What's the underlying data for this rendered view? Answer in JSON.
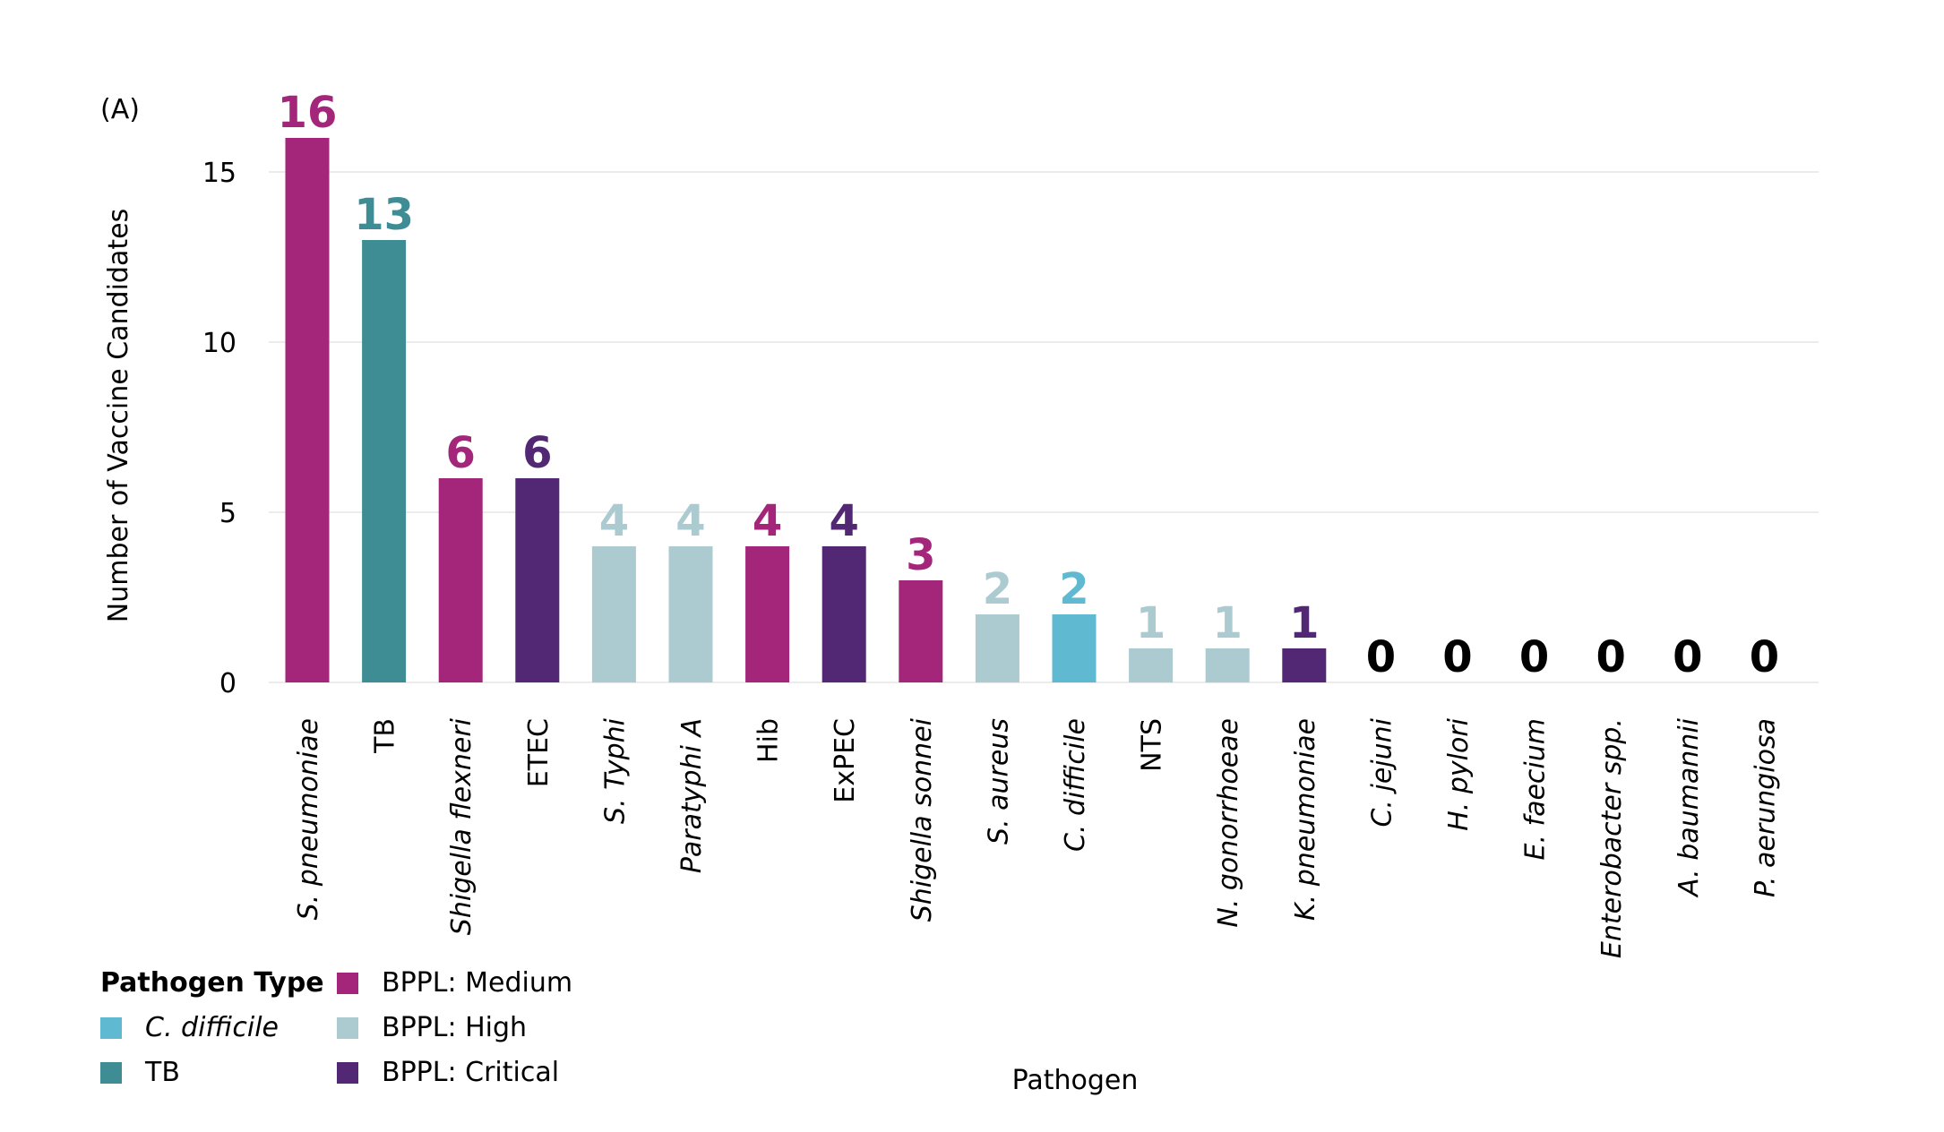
{
  "chart_data": {
    "type": "bar",
    "panel_label": "(A)",
    "ylabel": "Number of Vaccine Candidates",
    "xlabel": "Pathogen",
    "ylim": [
      0,
      17
    ],
    "yticks": [
      0,
      5,
      10,
      15
    ],
    "grid": true,
    "categories": [
      {
        "name": "S. pneumoniae",
        "italic": true
      },
      {
        "name": "TB",
        "italic": false
      },
      {
        "name": "Shigella flexneri",
        "italic": true
      },
      {
        "name": "ETEC",
        "italic": false
      },
      {
        "name": "S. Typhi",
        "italic": true
      },
      {
        "name": "Paratyphi A",
        "italic": true
      },
      {
        "name": "Hib",
        "italic": false
      },
      {
        "name": "ExPEC",
        "italic": false
      },
      {
        "name": "Shigella sonnei",
        "italic": true
      },
      {
        "name": "S. aureus",
        "italic": true
      },
      {
        "name": "C. difficile",
        "italic": true
      },
      {
        "name": "NTS",
        "italic": false
      },
      {
        "name": "N. gonorrhoeae",
        "italic": true
      },
      {
        "name": "K. pneumoniae",
        "italic": true
      },
      {
        "name": "C. jejuni",
        "italic": true
      },
      {
        "name": "H. pylori",
        "italic": true
      },
      {
        "name": "E. faecium",
        "italic": true
      },
      {
        "name": "Enterobacter spp.",
        "italic": true
      },
      {
        "name": "A. baumannii",
        "italic": true
      },
      {
        "name": "P. aerungiosa",
        "italic": true
      }
    ],
    "values": [
      16,
      13,
      6,
      6,
      4,
      4,
      4,
      4,
      3,
      2,
      2,
      1,
      1,
      1,
      0,
      0,
      0,
      0,
      0,
      0
    ],
    "bar_types": [
      "medium",
      "tb",
      "medium",
      "critical",
      "high",
      "high",
      "medium",
      "critical",
      "medium",
      "high",
      "cdiff",
      "high",
      "high",
      "critical",
      "none",
      "none",
      "none",
      "none",
      "none",
      "none"
    ],
    "legend": {
      "title": "Pathogen Type",
      "placement": "bottom-left",
      "items": [
        {
          "key": "cdiff",
          "label": "C. difficile",
          "italic": true
        },
        {
          "key": "tb",
          "label": "TB",
          "italic": false
        },
        {
          "key": "medium",
          "label": "BPPL: Medium",
          "italic": false
        },
        {
          "key": "high",
          "label": "BPPL: High",
          "italic": false
        },
        {
          "key": "critical",
          "label": "BPPL: Critical",
          "italic": false
        }
      ]
    }
  },
  "colors": {
    "medium": "#a3267a",
    "tb": "#3e8d95",
    "critical": "#522875",
    "high": "#abcbd1",
    "cdiff": "#5fb9d0",
    "none": "#000000",
    "grid": "#e6e6e6"
  }
}
